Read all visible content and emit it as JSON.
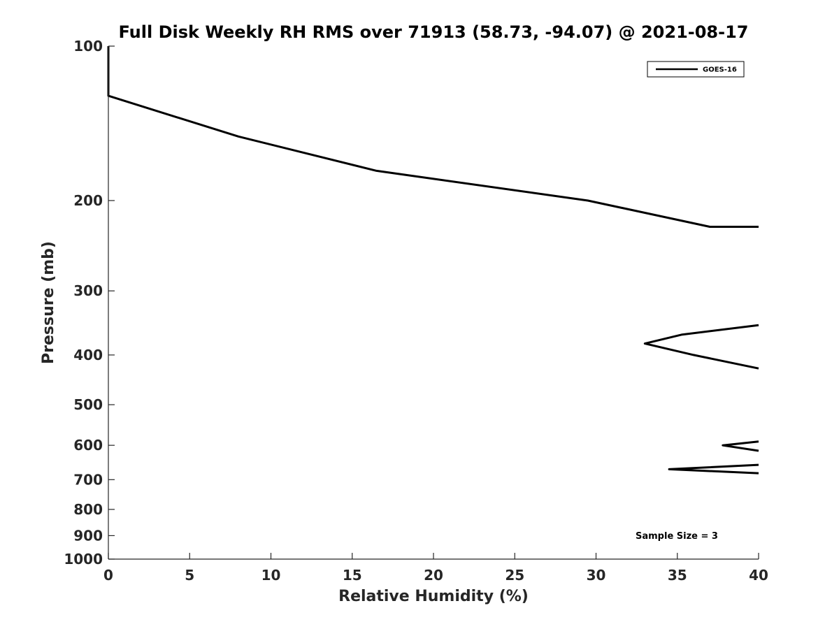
{
  "chart_data": {
    "type": "line",
    "title": "Full Disk Weekly RH RMS over 71913 (58.73, -94.07) @ 2021-08-17",
    "xlabel": "Relative Humidity (%)",
    "ylabel": "Pressure (mb)",
    "xlim": [
      0,
      40
    ],
    "ylim": [
      100,
      1000
    ],
    "y_scale": "log",
    "y_reversed": true,
    "grid": false,
    "legend_position": "top-right",
    "x_ticks": [
      0,
      5,
      10,
      15,
      20,
      25,
      30,
      35,
      40
    ],
    "y_ticks": [
      100,
      200,
      300,
      400,
      500,
      600,
      700,
      800,
      900,
      1000
    ],
    "series": [
      {
        "name": "GOES-16",
        "color": "#000000",
        "segments": [
          [
            [
              0,
              100
            ],
            [
              0,
              125
            ],
            [
              8,
              150
            ],
            [
              16.5,
              175
            ],
            [
              29.5,
              200
            ],
            [
              37,
              225
            ],
            [
              40,
              225
            ]
          ],
          [
            [
              40,
              350
            ],
            [
              35.3,
              365
            ],
            [
              33,
              380
            ],
            [
              36,
              400
            ],
            [
              40,
              425
            ]
          ],
          [
            [
              40,
              590
            ],
            [
              37.8,
              600
            ],
            [
              40,
              615
            ]
          ],
          [
            [
              40,
              655
            ],
            [
              34.5,
              668
            ],
            [
              40,
              680
            ]
          ]
        ]
      }
    ],
    "annotations": [
      "Sample Size = 3"
    ]
  }
}
